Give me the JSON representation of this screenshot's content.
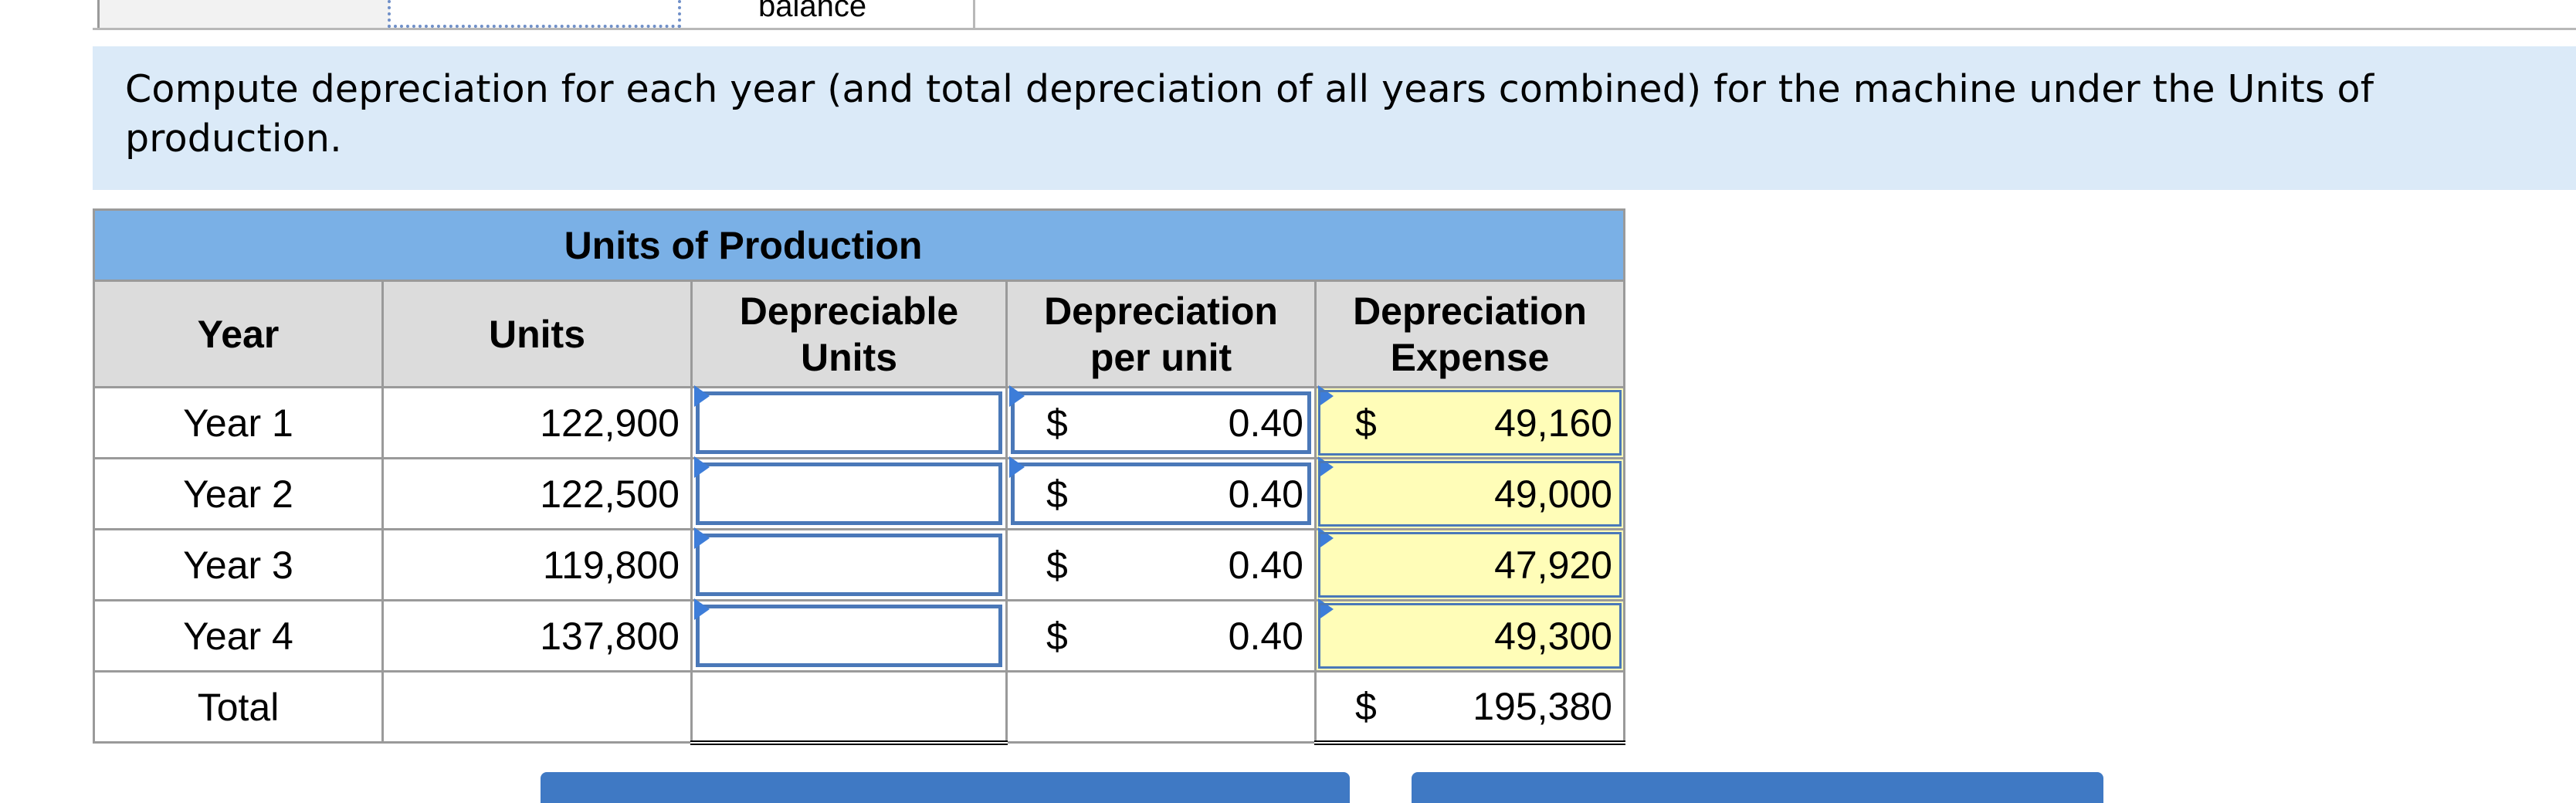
{
  "top_table": {
    "balance_label": "balance"
  },
  "instruction": {
    "text": "Compute depreciation for each year (and total depreciation of all years combined) for the machine under the Units of production."
  },
  "table": {
    "group_header": "Units of Production",
    "columns": [
      "Year",
      "Units",
      "Depreciable Units",
      "Depreciation per unit",
      "Depreciation Expense"
    ],
    "rows": [
      {
        "year": "Year 1",
        "units": "122,900",
        "depreciable_units": "",
        "per_unit_symbol": "$",
        "per_unit": "0.40",
        "expense_symbol": "$",
        "expense": "49,160"
      },
      {
        "year": "Year 2",
        "units": "122,500",
        "depreciable_units": "",
        "per_unit_symbol": "$",
        "per_unit": "0.40",
        "expense_symbol": "",
        "expense": "49,000"
      },
      {
        "year": "Year 3",
        "units": "119,800",
        "depreciable_units": "",
        "per_unit_symbol": "$",
        "per_unit": "0.40",
        "expense_symbol": "",
        "expense": "47,920"
      },
      {
        "year": "Year 4",
        "units": "137,800",
        "depreciable_units": "",
        "per_unit_symbol": "$",
        "per_unit": "0.40",
        "expense_symbol": "",
        "expense": "49,300"
      }
    ],
    "total": {
      "label": "Total",
      "symbol": "$",
      "value": "195,380"
    }
  },
  "colors": {
    "header_blue": "#7ab0e6",
    "input_border": "#4a78b8",
    "highlight_yellow": "#fffdb8",
    "instruction_bg": "#dbeaf8",
    "button_blue": "#3f79c4"
  },
  "icons": [
    "input-marker-icon"
  ]
}
